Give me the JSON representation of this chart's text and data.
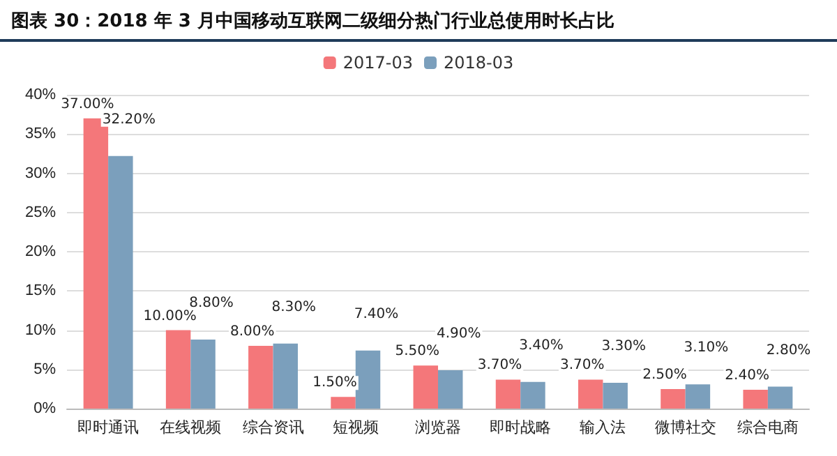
{
  "chart_data": {
    "type": "bar",
    "title": "图表 30：2018 年 3 月中国移动互联网二级细分热门行业总使用时长占比",
    "categories": [
      "即时通讯",
      "在线视频",
      "综合资讯",
      "短视频",
      "浏览器",
      "即时战略",
      "输入法",
      "微博社交",
      "综合电商"
    ],
    "series": [
      {
        "name": "2017-03",
        "color": "#f4777a",
        "values": [
          37.0,
          10.0,
          8.0,
          1.5,
          5.5,
          3.7,
          3.7,
          2.5,
          2.4
        ],
        "value_labels": [
          "37.00%",
          "10.00%",
          "8.00%",
          "1.50%",
          "5.50%",
          "3.70%",
          "3.70%",
          "2.50%",
          "2.40%"
        ]
      },
      {
        "name": "2018-03",
        "color": "#7b9fbc",
        "values": [
          32.2,
          8.8,
          8.3,
          7.4,
          4.9,
          3.4,
          3.3,
          3.1,
          2.8
        ],
        "value_labels": [
          "32.20%",
          "8.80%",
          "8.30%",
          "7.40%",
          "4.90%",
          "3.40%",
          "3.30%",
          "3.10%",
          "2.80%"
        ]
      }
    ],
    "ylim": [
      0,
      40
    ],
    "yticks": [
      {
        "value": 0,
        "label": "0%"
      },
      {
        "value": 5,
        "label": "5%"
      },
      {
        "value": 10,
        "label": "10%"
      },
      {
        "value": 15,
        "label": "15%"
      },
      {
        "value": 20,
        "label": "20%"
      },
      {
        "value": 25,
        "label": "25%"
      },
      {
        "value": 30,
        "label": "30%"
      },
      {
        "value": 35,
        "label": "35%"
      },
      {
        "value": 40,
        "label": "40%"
      }
    ],
    "grid": "y",
    "legend": "top"
  }
}
